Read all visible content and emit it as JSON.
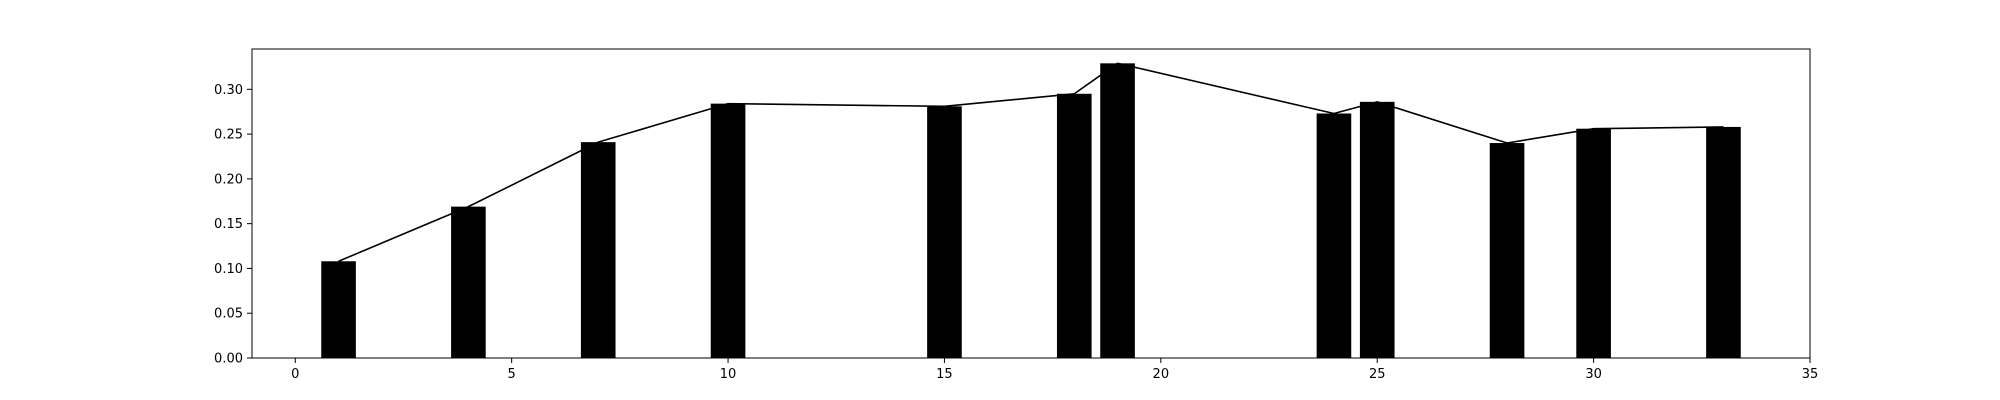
{
  "chart_data": {
    "type": "bar",
    "title": "",
    "xlabel": "",
    "ylabel": "",
    "xlim": [
      -1,
      35
    ],
    "ylim": [
      0,
      0.345
    ],
    "grid": false,
    "x_ticks": [
      0,
      5,
      10,
      15,
      20,
      25,
      30,
      35
    ],
    "y_ticks": [
      0.0,
      0.05,
      0.1,
      0.15,
      0.2,
      0.25,
      0.3
    ],
    "x_tick_labels": [
      "0",
      "5",
      "10",
      "15",
      "20",
      "25",
      "30",
      "35"
    ],
    "y_tick_labels": [
      "0.00",
      "0.05",
      "0.10",
      "0.15",
      "0.20",
      "0.25",
      "0.30"
    ],
    "bar_width": 0.8,
    "bar_color": "#000000",
    "line_color": "#000000",
    "x": [
      1,
      4,
      7,
      10,
      15,
      18,
      19,
      24,
      25,
      28,
      30,
      33
    ],
    "values": [
      0.108,
      0.169,
      0.241,
      0.284,
      0.281,
      0.295,
      0.329,
      0.273,
      0.286,
      0.24,
      0.256,
      0.258
    ],
    "series": [
      {
        "type": "bar",
        "x": [
          1,
          4,
          7,
          10,
          15,
          18,
          19,
          24,
          25,
          28,
          30,
          33
        ],
        "values": [
          0.108,
          0.169,
          0.241,
          0.284,
          0.281,
          0.295,
          0.329,
          0.273,
          0.286,
          0.24,
          0.256,
          0.258
        ]
      },
      {
        "type": "line",
        "x": [
          1,
          4,
          7,
          10,
          15,
          18,
          19,
          24,
          25,
          28,
          30,
          33
        ],
        "values": [
          0.108,
          0.169,
          0.241,
          0.284,
          0.281,
          0.295,
          0.329,
          0.273,
          0.286,
          0.24,
          0.256,
          0.258
        ]
      }
    ]
  }
}
